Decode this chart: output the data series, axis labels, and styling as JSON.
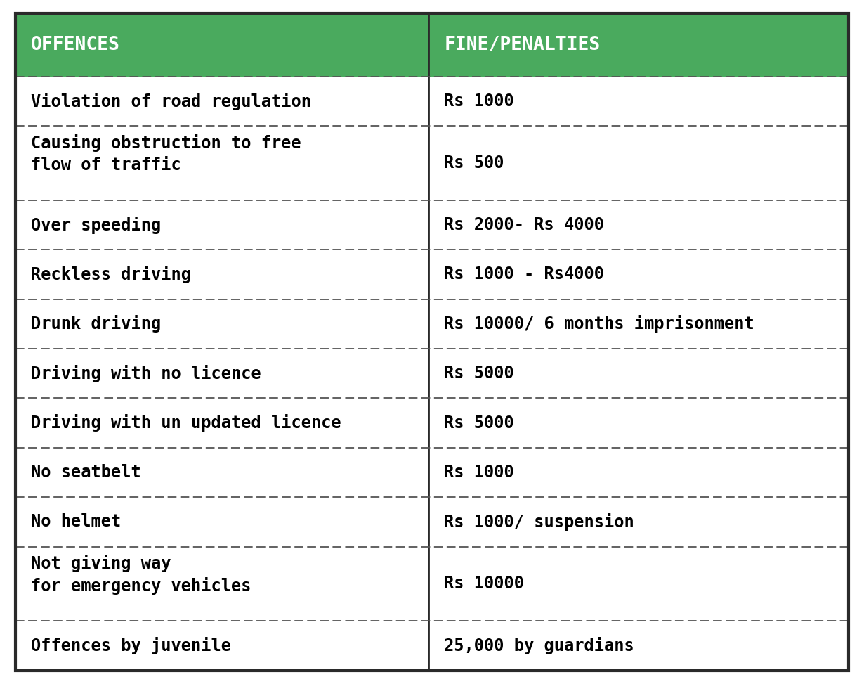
{
  "header": [
    "OFFENCES",
    "FINE/PENALTIES"
  ],
  "rows": [
    [
      "Violation of road regulation",
      "Rs 1000"
    ],
    [
      "Causing obstruction to free\nflow of traffic",
      "Rs 500"
    ],
    [
      "Over speeding",
      "Rs 2000- Rs 4000"
    ],
    [
      "Reckless driving",
      "Rs 1000 - Rs4000"
    ],
    [
      "Drunk driving",
      "Rs 10000/ 6 months imprisonment"
    ],
    [
      "Driving with no licence",
      "Rs 5000"
    ],
    [
      "Driving with un updated licence",
      "Rs 5000"
    ],
    [
      "No seatbelt",
      "Rs 1000"
    ],
    [
      "No helmet",
      "Rs 1000/ suspension"
    ],
    [
      "Not giving way\nfor emergency vehicles",
      "Rs 10000"
    ],
    [
      "Offences by juvenile",
      "25,000 by guardians"
    ]
  ],
  "header_bg": "#4aaa5e",
  "header_text_color": "#ffffff",
  "cell_bg": "#ffffff",
  "cell_text_color": "#000000",
  "border_color": "#2a2a2a",
  "divider_color": "#555555",
  "col_split": 0.496,
  "header_font_size": 19,
  "cell_font_size": 17,
  "outer_border_lw": 3.0,
  "inner_border_lw": 2.0,
  "dashed_lw": 1.3
}
